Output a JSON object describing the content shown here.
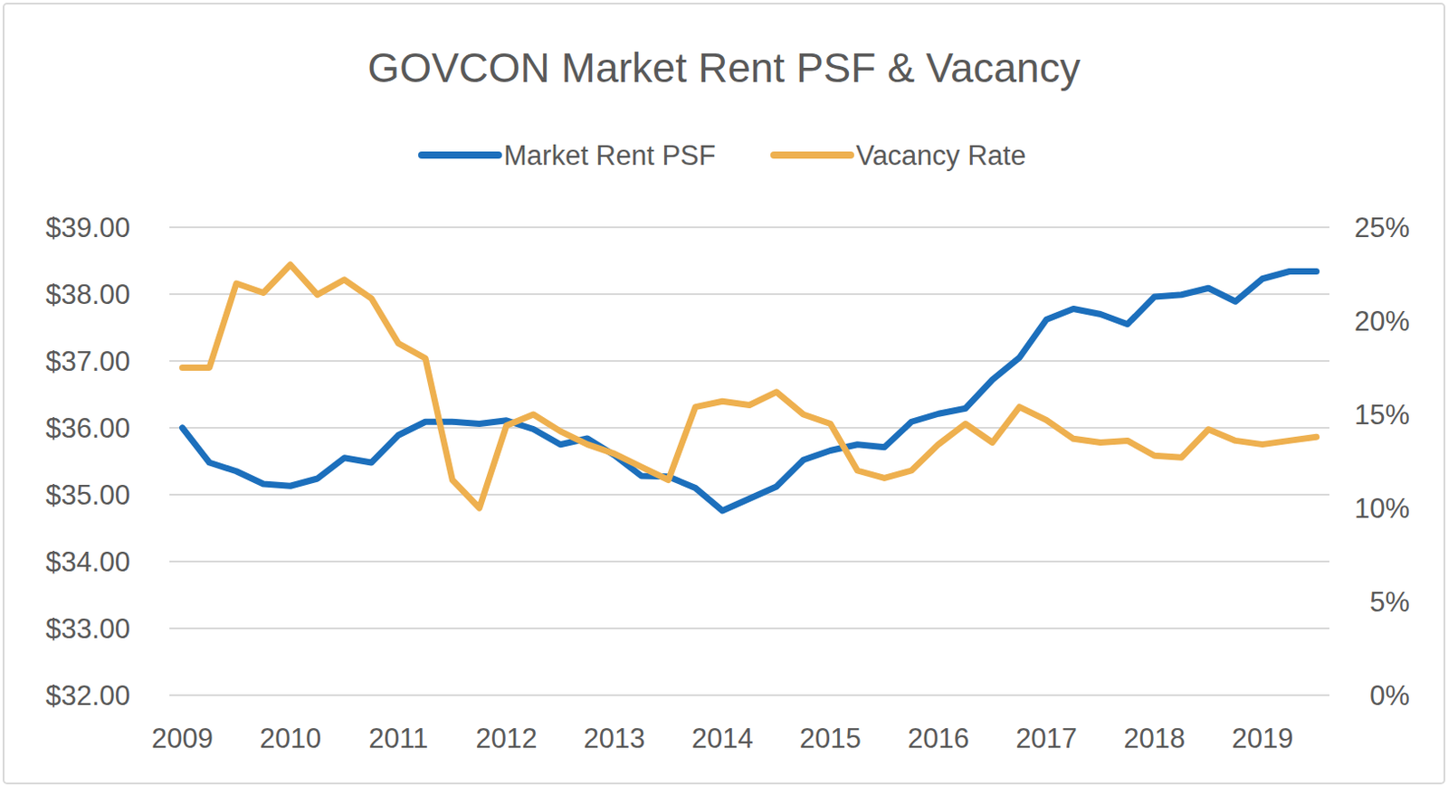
{
  "chart_data": {
    "type": "line",
    "title": "GOVCON Market Rent PSF & Vacancy",
    "x": [
      2009,
      2009.25,
      2009.5,
      2009.75,
      2010,
      2010.25,
      2010.5,
      2010.75,
      2011,
      2011.25,
      2011.5,
      2011.75,
      2012,
      2012.25,
      2012.5,
      2012.75,
      2013,
      2013.25,
      2013.5,
      2013.75,
      2014,
      2014.25,
      2014.5,
      2014.75,
      2015,
      2015.25,
      2015.5,
      2015.75,
      2016,
      2016.25,
      2016.5,
      2016.75,
      2017,
      2017.25,
      2017.5,
      2017.75,
      2018,
      2018.25,
      2018.5,
      2018.75,
      2019,
      2019.25,
      2019.5
    ],
    "xlim": [
      2008.88,
      2019.62
    ],
    "xticks": [
      2009,
      2010,
      2011,
      2012,
      2013,
      2014,
      2015,
      2016,
      2017,
      2018,
      2019
    ],
    "ylim": [
      32,
      39
    ],
    "yticks": [
      {
        "value": 32,
        "label": "$32.00"
      },
      {
        "value": 33,
        "label": "$33.00"
      },
      {
        "value": 34,
        "label": "$34.00"
      },
      {
        "value": 35,
        "label": "$35.00"
      },
      {
        "value": 36,
        "label": "$36.00"
      },
      {
        "value": 37,
        "label": "$37.00"
      },
      {
        "value": 38,
        "label": "$38.00"
      },
      {
        "value": 39,
        "label": "$39.00"
      }
    ],
    "y2lim": [
      0,
      25
    ],
    "y2ticks": [
      {
        "value": 0,
        "label": "0%"
      },
      {
        "value": 5,
        "label": "5%"
      },
      {
        "value": 10,
        "label": "10%"
      },
      {
        "value": 15,
        "label": "15%"
      },
      {
        "value": 20,
        "label": "20%"
      },
      {
        "value": 25,
        "label": "25%"
      }
    ],
    "grid": true,
    "legend": "top",
    "series": [
      {
        "name": "Market Rent PSF",
        "color": "#1c6fbc",
        "values": [
          36.0,
          35.48,
          35.35,
          35.16,
          35.13,
          35.24,
          35.55,
          35.48,
          35.89,
          36.09,
          36.09,
          36.06,
          36.11,
          35.98,
          35.75,
          35.84,
          35.59,
          35.28,
          35.27,
          35.1,
          34.76,
          34.94,
          35.12,
          35.52,
          35.66,
          35.75,
          35.71,
          36.09,
          36.21,
          36.29,
          36.72,
          37.05,
          37.62,
          37.78,
          37.7,
          37.55,
          37.96,
          37.99,
          38.09,
          37.89,
          38.23,
          38.34,
          38.34
        ]
      },
      {
        "name": "Vacancy Rate",
        "color": "#eeb04f",
        "axis": "y2",
        "values": [
          17.5,
          17.5,
          22.0,
          21.5,
          23.0,
          21.4,
          22.2,
          21.2,
          18.8,
          18.0,
          11.5,
          10.0,
          14.4,
          15.0,
          14.1,
          13.4,
          12.9,
          12.2,
          11.5,
          15.4,
          15.7,
          15.5,
          16.2,
          15.0,
          14.5,
          12.0,
          11.6,
          12.0,
          13.4,
          14.5,
          13.5,
          15.4,
          14.7,
          13.7,
          13.5,
          13.6,
          12.8,
          12.7,
          14.2,
          13.6,
          13.4,
          13.6,
          13.8
        ]
      }
    ]
  }
}
